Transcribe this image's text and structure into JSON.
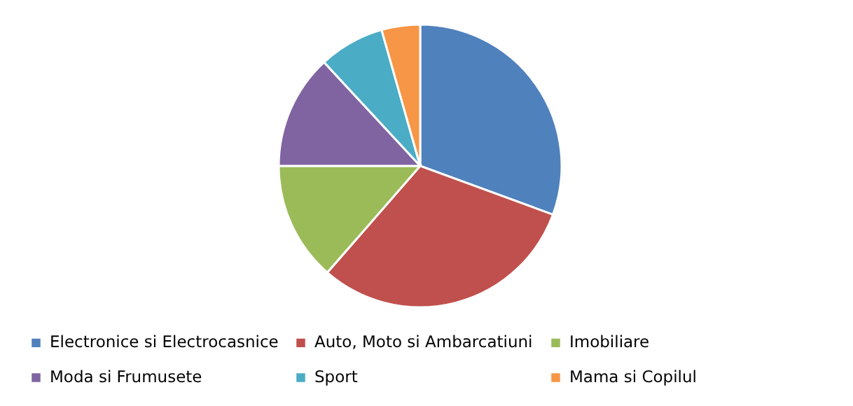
{
  "chart_data": {
    "type": "pie",
    "categories": [
      "Electronice si Electrocasnice",
      "Auto, Moto si Ambarcatiuni",
      "Imobiliare",
      "Moda si Frumusete",
      "Sport",
      "Mama si Copilul"
    ],
    "values": [
      30.6,
      30.8,
      13.6,
      13.1,
      7.5,
      4.4
    ],
    "colors": [
      "#4f81bd",
      "#c0504d",
      "#9bbb59",
      "#8064a2",
      "#4bacc6",
      "#f79646"
    ],
    "legend": "bottom"
  }
}
